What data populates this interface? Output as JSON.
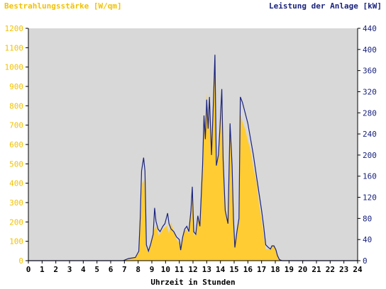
{
  "colors": {
    "irradiance": "#FFCC33",
    "power": "#1A237E",
    "plot_bg": "#D8D8D8",
    "axis": "#000000",
    "left_axis_text": "#F2C200",
    "right_axis_text": "#1A237E"
  },
  "chart_data": {
    "type": "area",
    "title": "",
    "xlabel": "Uhrzeit in Stunden",
    "ylabel_left": "Bestrahlungsstärke [W/qm]",
    "ylabel_right": "Leistung der Anlage [kW]",
    "xlim": [
      0,
      24
    ],
    "ylim_left": [
      0,
      1200
    ],
    "ylim_right": [
      0,
      440
    ],
    "x_ticks": [
      "0",
      "1",
      "2",
      "3",
      "4",
      "5",
      "6",
      "7",
      "8",
      "9",
      "10",
      "11",
      "12",
      "13",
      "14",
      "15",
      "16",
      "17",
      "18",
      "19",
      "20",
      "21",
      "22",
      "23",
      "24"
    ],
    "y_ticks_left": [
      "0",
      "100",
      "200",
      "300",
      "400",
      "500",
      "600",
      "700",
      "800",
      "900",
      "1000",
      "1100",
      "1200"
    ],
    "y_ticks_right": [
      "0",
      "40",
      "80",
      "120",
      "160",
      "200",
      "240",
      "280",
      "320",
      "360",
      "400",
      "440"
    ],
    "grid": false,
    "series": [
      {
        "name": "Bestrahlungsstärke [W/qm]",
        "axis": "left",
        "style": "filled-area",
        "points": [
          [
            0,
            0
          ],
          [
            6.9,
            0
          ],
          [
            7.0,
            3
          ],
          [
            7.3,
            12
          ],
          [
            7.8,
            18
          ],
          [
            8.05,
            40
          ],
          [
            8.15,
            150
          ],
          [
            8.3,
            400
          ],
          [
            8.45,
            420
          ],
          [
            8.6,
            60
          ],
          [
            8.75,
            40
          ],
          [
            8.9,
            90
          ],
          [
            9.1,
            150
          ],
          [
            9.3,
            180
          ],
          [
            9.5,
            130
          ],
          [
            9.7,
            150
          ],
          [
            9.9,
            170
          ],
          [
            10.1,
            180
          ],
          [
            10.25,
            140
          ],
          [
            10.4,
            200
          ],
          [
            10.6,
            150
          ],
          [
            10.8,
            110
          ],
          [
            11.0,
            90
          ],
          [
            11.1,
            60
          ],
          [
            11.3,
            150
          ],
          [
            11.5,
            160
          ],
          [
            11.7,
            140
          ],
          [
            11.85,
            250
          ],
          [
            11.95,
            380
          ],
          [
            12.05,
            130
          ],
          [
            12.2,
            140
          ],
          [
            12.35,
            240
          ],
          [
            12.5,
            160
          ],
          [
            12.7,
            500
          ],
          [
            12.8,
            760
          ],
          [
            12.9,
            630
          ],
          [
            13.0,
            870
          ],
          [
            13.1,
            690
          ],
          [
            13.2,
            880
          ],
          [
            13.35,
            540
          ],
          [
            13.5,
            880
          ],
          [
            13.6,
            1070
          ],
          [
            13.7,
            490
          ],
          [
            13.85,
            560
          ],
          [
            13.95,
            660
          ],
          [
            14.1,
            890
          ],
          [
            14.2,
            500
          ],
          [
            14.35,
            250
          ],
          [
            14.55,
            180
          ],
          [
            14.7,
            720
          ],
          [
            14.85,
            480
          ],
          [
            14.95,
            200
          ],
          [
            15.05,
            70
          ],
          [
            15.2,
            150
          ],
          [
            15.35,
            200
          ],
          [
            15.45,
            760
          ],
          [
            15.6,
            720
          ],
          [
            15.8,
            680
          ],
          [
            16.0,
            620
          ],
          [
            16.2,
            570
          ],
          [
            16.4,
            480
          ],
          [
            16.6,
            420
          ],
          [
            16.8,
            300
          ],
          [
            17.0,
            210
          ],
          [
            17.15,
            130
          ],
          [
            17.3,
            60
          ],
          [
            17.5,
            60
          ],
          [
            17.65,
            60
          ],
          [
            17.75,
            80
          ],
          [
            17.9,
            80
          ],
          [
            18.05,
            60
          ],
          [
            18.15,
            30
          ],
          [
            18.3,
            5
          ],
          [
            18.5,
            0
          ],
          [
            24,
            0
          ]
        ]
      },
      {
        "name": "Leistung der Anlage [kW]",
        "axis": "right",
        "style": "line",
        "points": [
          [
            0,
            0
          ],
          [
            6.9,
            0
          ],
          [
            7.0,
            1
          ],
          [
            7.3,
            4
          ],
          [
            7.8,
            6
          ],
          [
            8.05,
            18
          ],
          [
            8.15,
            80
          ],
          [
            8.25,
            170
          ],
          [
            8.4,
            195
          ],
          [
            8.5,
            170
          ],
          [
            8.6,
            30
          ],
          [
            8.75,
            18
          ],
          [
            8.9,
            30
          ],
          [
            9.1,
            50
          ],
          [
            9.2,
            100
          ],
          [
            9.3,
            75
          ],
          [
            9.45,
            60
          ],
          [
            9.6,
            55
          ],
          [
            9.8,
            65
          ],
          [
            9.95,
            70
          ],
          [
            10.05,
            80
          ],
          [
            10.15,
            90
          ],
          [
            10.25,
            70
          ],
          [
            10.4,
            60
          ],
          [
            10.6,
            55
          ],
          [
            10.8,
            45
          ],
          [
            11.0,
            40
          ],
          [
            11.1,
            20
          ],
          [
            11.25,
            45
          ],
          [
            11.4,
            60
          ],
          [
            11.55,
            65
          ],
          [
            11.7,
            55
          ],
          [
            11.85,
            95
          ],
          [
            11.95,
            140
          ],
          [
            12.05,
            55
          ],
          [
            12.2,
            50
          ],
          [
            12.35,
            85
          ],
          [
            12.5,
            65
          ],
          [
            12.7,
            180
          ],
          [
            12.8,
            275
          ],
          [
            12.9,
            230
          ],
          [
            13.0,
            305
          ],
          [
            13.1,
            250
          ],
          [
            13.2,
            310
          ],
          [
            13.35,
            200
          ],
          [
            13.5,
            310
          ],
          [
            13.6,
            390
          ],
          [
            13.7,
            180
          ],
          [
            13.85,
            200
          ],
          [
            13.95,
            245
          ],
          [
            14.1,
            325
          ],
          [
            14.2,
            190
          ],
          [
            14.35,
            95
          ],
          [
            14.55,
            70
          ],
          [
            14.7,
            260
          ],
          [
            14.85,
            180
          ],
          [
            14.95,
            80
          ],
          [
            15.05,
            25
          ],
          [
            15.2,
            55
          ],
          [
            15.35,
            80
          ],
          [
            15.45,
            310
          ],
          [
            15.6,
            300
          ],
          [
            15.8,
            280
          ],
          [
            16.0,
            260
          ],
          [
            16.2,
            230
          ],
          [
            16.4,
            200
          ],
          [
            16.6,
            165
          ],
          [
            16.8,
            130
          ],
          [
            17.0,
            95
          ],
          [
            17.15,
            65
          ],
          [
            17.3,
            30
          ],
          [
            17.5,
            25
          ],
          [
            17.65,
            22
          ],
          [
            17.75,
            28
          ],
          [
            17.9,
            28
          ],
          [
            18.05,
            20
          ],
          [
            18.15,
            10
          ],
          [
            18.3,
            2
          ],
          [
            18.5,
            0
          ],
          [
            24,
            0
          ]
        ]
      }
    ]
  }
}
